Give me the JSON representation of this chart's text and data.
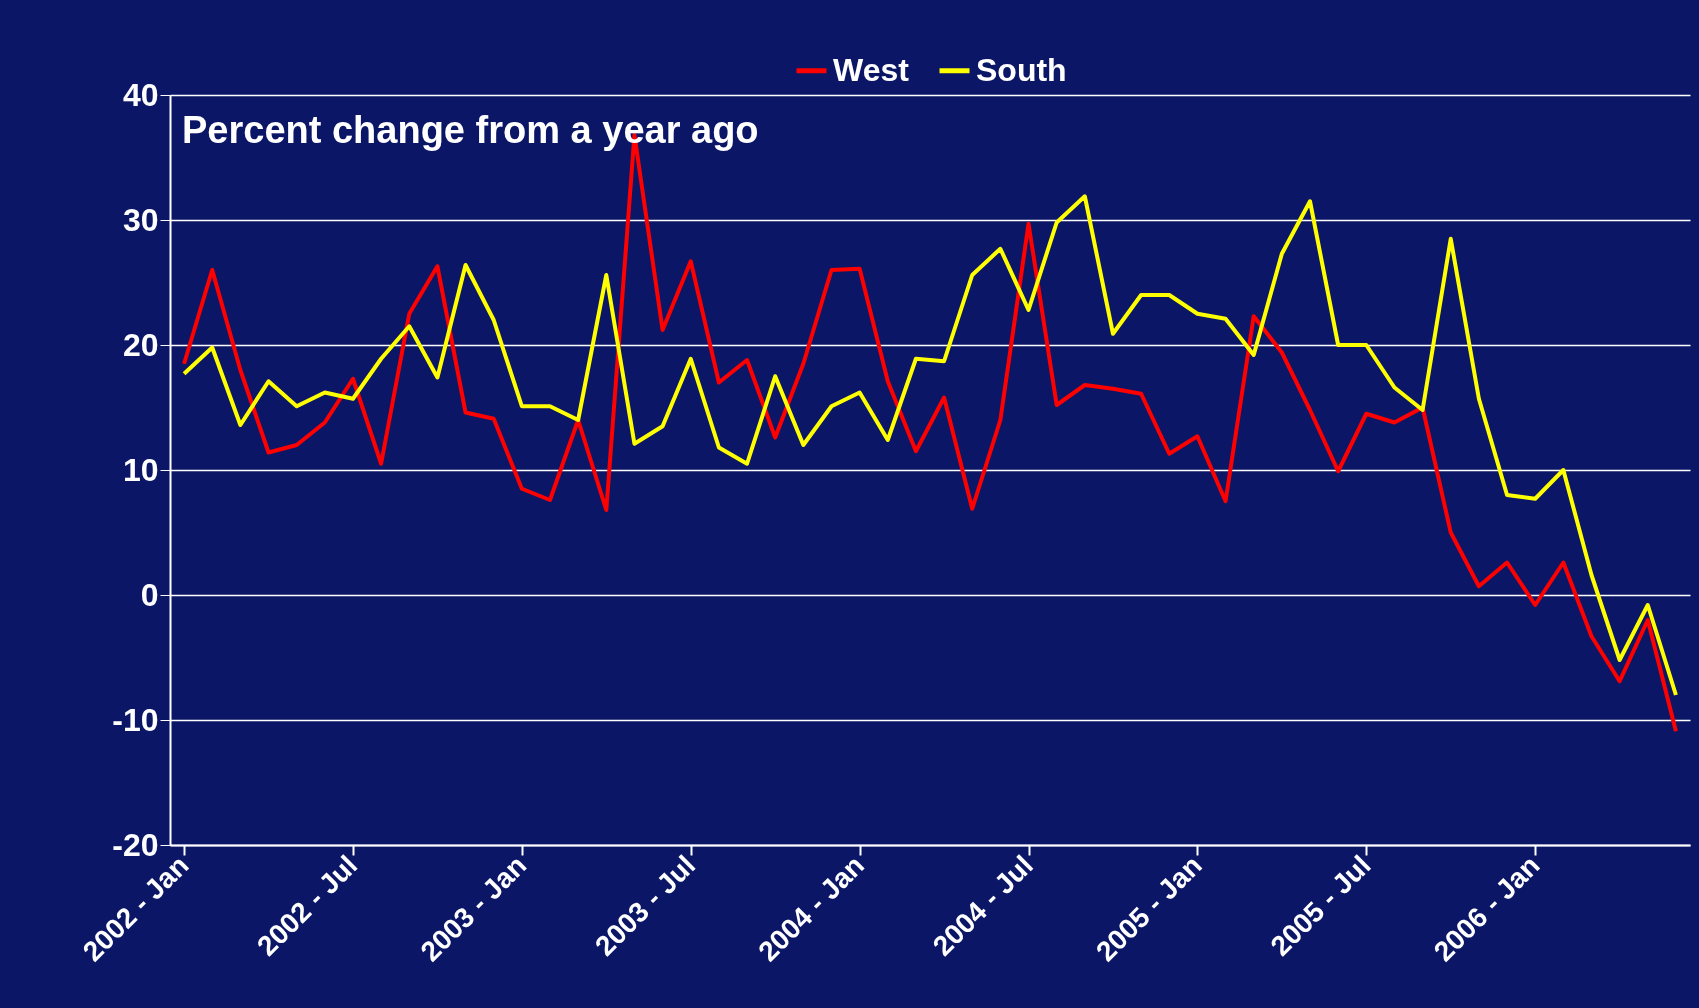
{
  "chart_data": {
    "type": "line",
    "annotations": [
      "Percent change from a year ago"
    ],
    "categories": [
      "2002 - Jan",
      null,
      null,
      null,
      null,
      null,
      "2002 - Jul",
      null,
      null,
      null,
      null,
      null,
      "2003 - Jan",
      null,
      null,
      null,
      null,
      null,
      "2003 - Jul",
      null,
      null,
      null,
      null,
      null,
      "2004 - Jan",
      null,
      null,
      null,
      null,
      null,
      "2004 - Jul",
      null,
      null,
      null,
      null,
      null,
      "2005 - Jan",
      null,
      null,
      null,
      null,
      null,
      "2005 - Jul",
      null,
      null,
      null,
      null,
      null,
      "2006 - Jan",
      null,
      null,
      null,
      null,
      null
    ],
    "series": [
      {
        "name": "West",
        "color": "#ff0000",
        "values": [
          18.5,
          26,
          18,
          11.4,
          12,
          13.8,
          17.3,
          10.5,
          22.5,
          26.3,
          14.6,
          14.1,
          8.5,
          7.6,
          14,
          6.8,
          36.8,
          21.2,
          26.7,
          17,
          18.8,
          12.6,
          18.5,
          26,
          26.1,
          17.1,
          11.5,
          15.8,
          6.9,
          14,
          29.7,
          15.2,
          16.8,
          16.5,
          16.1,
          11.3,
          12.7,
          7.5,
          22.3,
          19.4,
          14.8,
          9.9,
          14.5,
          13.8,
          15,
          5,
          0.7,
          2.6,
          -0.8,
          2.6,
          -3.3,
          -6.9,
          -2,
          -10.9
        ]
      },
      {
        "name": "South",
        "color": "#ffff00",
        "values": [
          17.7,
          19.8,
          13.6,
          17.1,
          15.1,
          16.2,
          15.7,
          18.9,
          21.5,
          17.4,
          26.4,
          22,
          15.1,
          15.1,
          14,
          25.6,
          12.1,
          13.5,
          18.9,
          11.8,
          10.5,
          17.5,
          12,
          15.1,
          16.2,
          12.4,
          18.9,
          18.7,
          25.6,
          27.7,
          22.8,
          29.8,
          31.9,
          20.9,
          24,
          24,
          22.5,
          22.1,
          19.2,
          27.3,
          31.5,
          20,
          20,
          16.6,
          14.8,
          28.5,
          15.7,
          8,
          7.7,
          10,
          1.6,
          -5.2,
          -0.8,
          -8
        ]
      }
    ],
    "ylim": [
      -20,
      40
    ],
    "yticks": [
      -20,
      -10,
      0,
      10,
      20,
      30,
      40
    ],
    "grid": "y",
    "legend": "top",
    "line_style": "solid",
    "marker": "none"
  }
}
